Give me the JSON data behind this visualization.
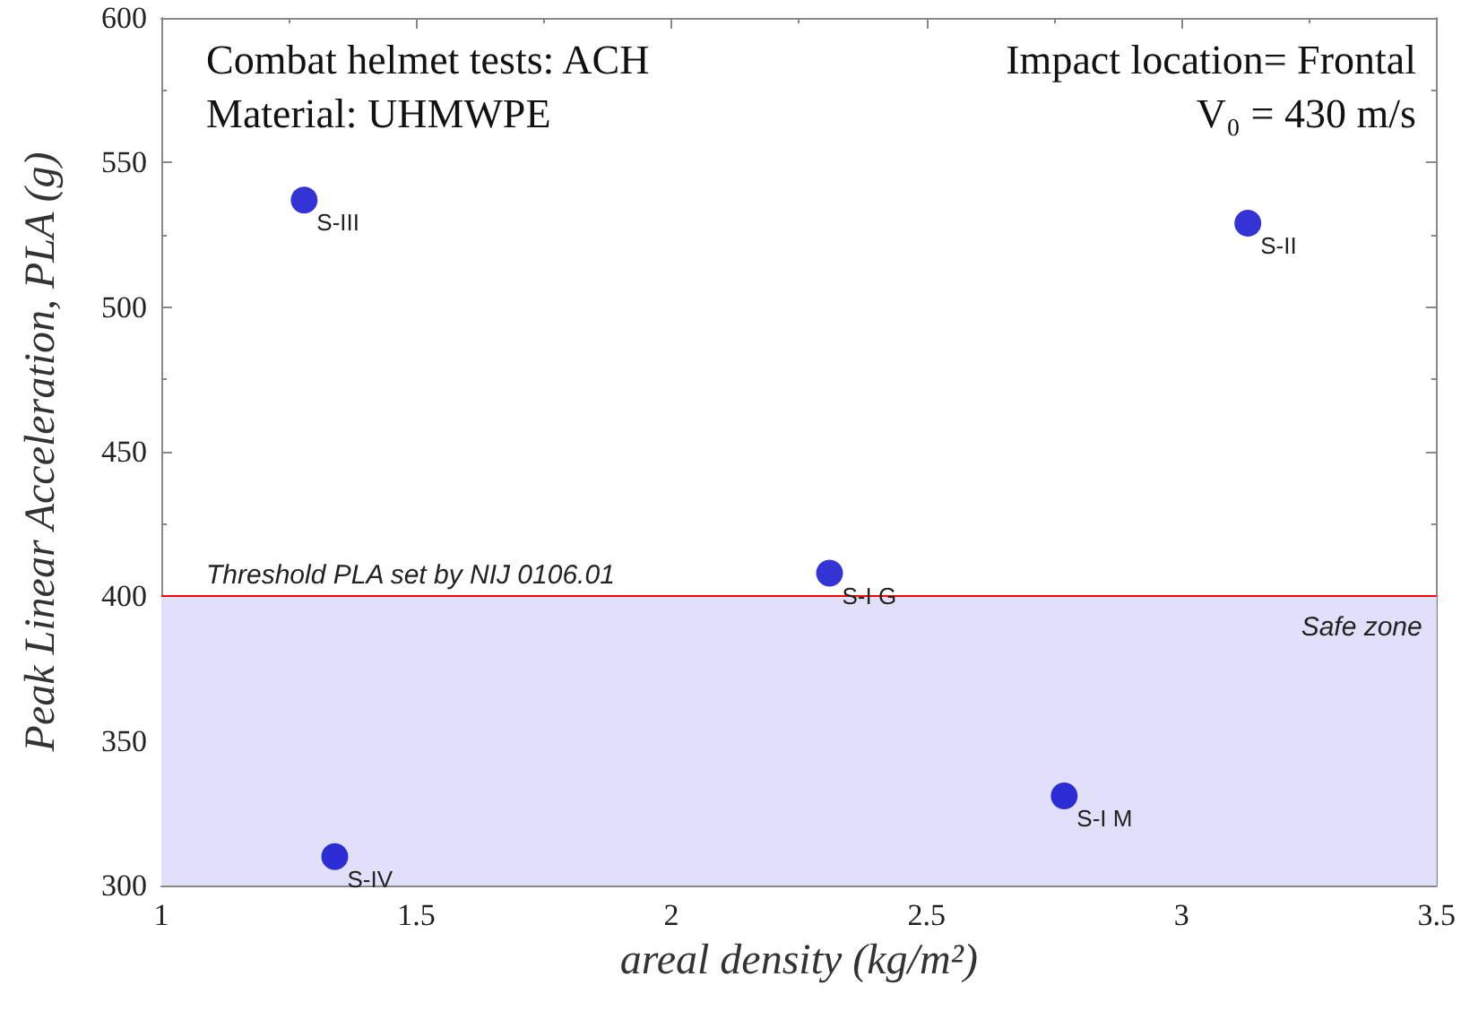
{
  "chart_data": {
    "type": "scatter",
    "xlabel": "areal density (kg/m²)",
    "ylabel": "Peak Linear Acceleration, PLA (g)",
    "x": [
      1.28,
      3.13,
      2.31,
      2.77,
      1.34
    ],
    "series": [
      {
        "color": "#0000cc",
        "values": [
          537,
          529,
          408,
          331,
          310
        ]
      }
    ],
    "marker": "circle",
    "grid": false,
    "xlim": [
      1,
      3.5
    ],
    "xticks": [
      1,
      1.5,
      2,
      2.5,
      3,
      3.5
    ],
    "ylim": [
      300,
      600
    ],
    "yticks": [
      300,
      350,
      400,
      450,
      500,
      550,
      600
    ],
    "ref_lines": [
      {
        "axis": "y",
        "value": 400,
        "label": "Threshold PLA set by NIJ 0106.01",
        "color": "#ff0000",
        "line_style": "solid"
      }
    ],
    "bands": [
      {
        "axis": "y",
        "from": 300,
        "to": 400,
        "label": "Safe zone",
        "color": "#e1e0fb"
      }
    ],
    "annotations": [
      "Combat helmet tests: ACH",
      "Material: UHMWPE",
      "Impact location= Frontal",
      "V₀ = 430 m/s",
      {
        "text": "S-III",
        "x": 1.28,
        "y": 537
      },
      {
        "text": "S-II",
        "x": 3.13,
        "y": 529
      },
      {
        "text": "S-I G",
        "x": 2.31,
        "y": 408
      },
      {
        "text": "S-I M",
        "x": 2.77,
        "y": 331
      },
      {
        "text": "S-IV",
        "x": 1.34,
        "y": 310
      }
    ]
  }
}
